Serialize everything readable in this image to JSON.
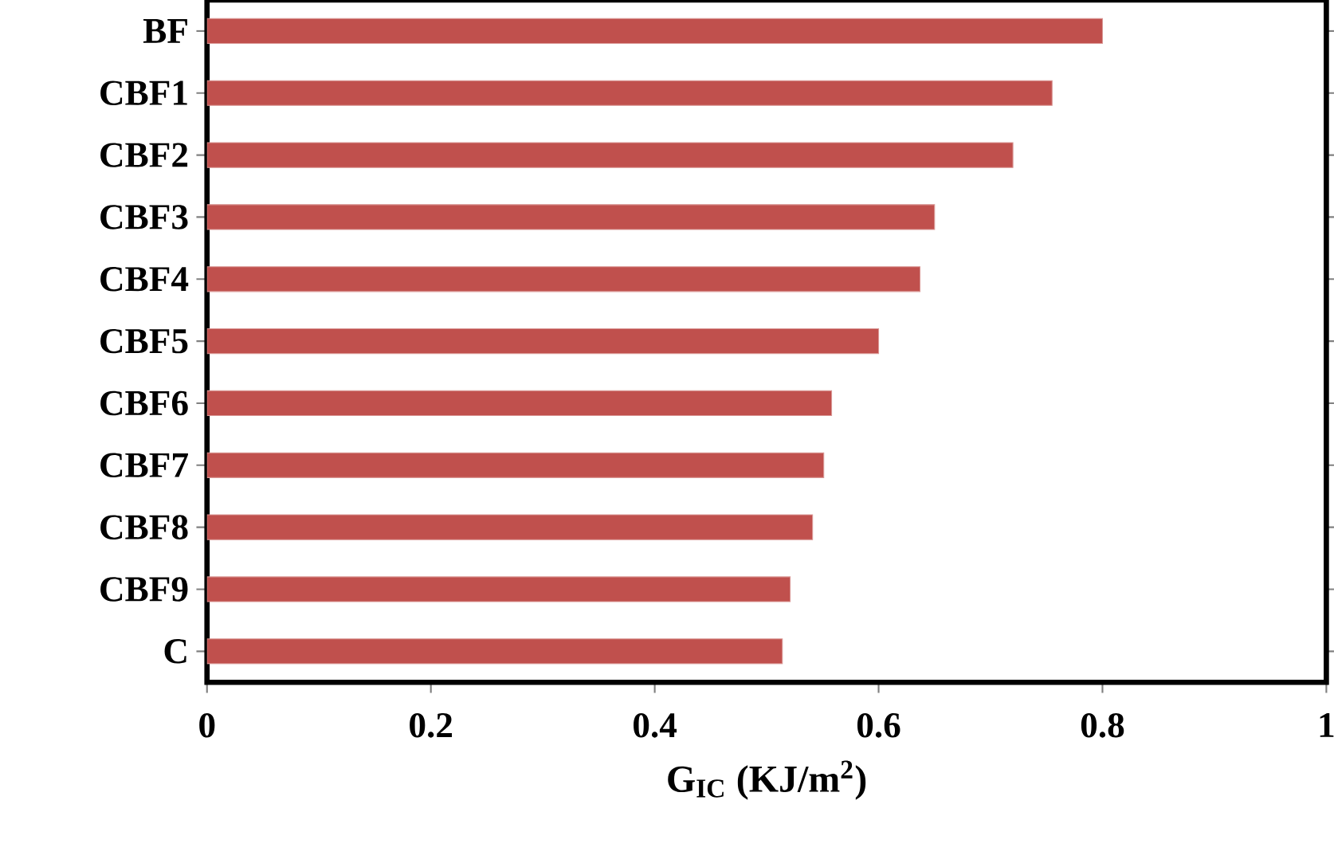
{
  "chart_data": {
    "type": "bar",
    "orientation": "horizontal",
    "xlabel": "G$_{IC}$ (KJ/m$^{2}$)",
    "categories": [
      "BF",
      "CBF1",
      "CBF2",
      "CBF3",
      "CBF4",
      "CBF5",
      "CBF6",
      "CBF7",
      "CBF8",
      "CBF9",
      "C"
    ],
    "values": [
      0.8,
      0.755,
      0.72,
      0.65,
      0.637,
      0.6,
      0.558,
      0.551,
      0.541,
      0.521,
      0.514
    ],
    "color": "#c0504d",
    "xlim": [
      0,
      1
    ],
    "xticks": [
      0,
      0.2,
      0.4,
      0.6,
      0.8,
      1
    ]
  }
}
